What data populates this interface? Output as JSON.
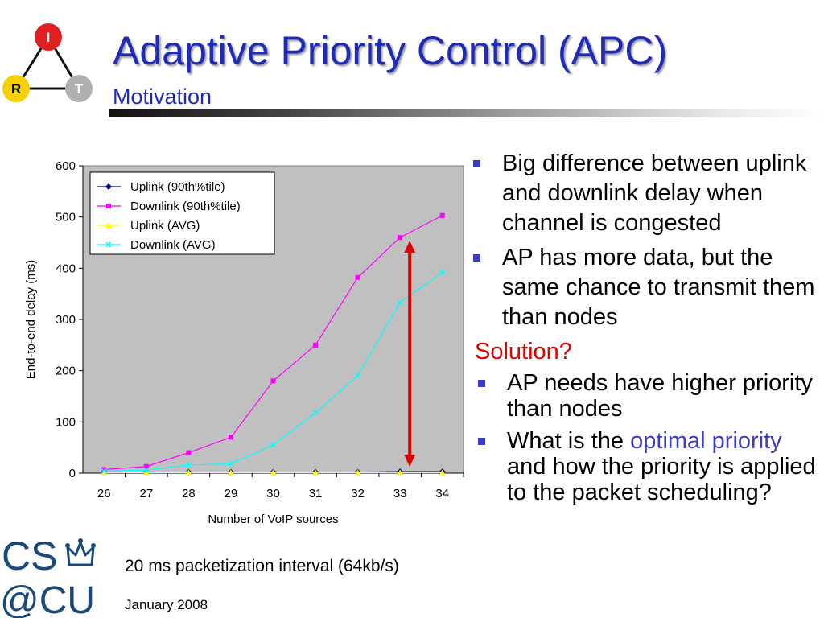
{
  "header": {
    "title": "Adaptive Priority Control (APC)",
    "subtitle": "Motivation",
    "logo": {
      "top": "I",
      "left": "R",
      "right": "T"
    }
  },
  "chart_data": {
    "type": "line",
    "xlabel": "Number of VoIP sources",
    "ylabel": "End-to-end delay (ms)",
    "categories": [
      "26",
      "27",
      "28",
      "29",
      "30",
      "31",
      "32",
      "33",
      "34"
    ],
    "ylim": [
      0,
      600
    ],
    "yticks": [
      "0",
      "100",
      "200",
      "300",
      "400",
      "500",
      "600"
    ],
    "grid": false,
    "legend_position": "top-left",
    "series": [
      {
        "name": "Uplink (90th%tile)",
        "color": "#000080",
        "marker": "diamond",
        "values": [
          2,
          2,
          2,
          2,
          2,
          2,
          2,
          3,
          3
        ]
      },
      {
        "name": "Downlink (90th%tile)",
        "color": "#ff00ff",
        "marker": "square",
        "values": [
          7,
          13,
          40,
          70,
          180,
          250,
          382,
          460,
          503
        ]
      },
      {
        "name": "Uplink (AVG)",
        "color": "#ffff00",
        "marker": "triangle",
        "values": [
          1,
          1,
          1,
          1,
          1,
          1,
          1,
          1,
          1
        ]
      },
      {
        "name": "Downlink (AVG)",
        "color": "#00ffff",
        "marker": "x",
        "values": [
          4,
          6,
          16,
          18,
          55,
          118,
          190,
          333,
          392
        ]
      }
    ],
    "annotations": [
      {
        "type": "double-arrow",
        "color": "#e00000",
        "x": "33",
        "y_from": 3,
        "y_to": 460
      }
    ]
  },
  "bullets": [
    {
      "text": "Big difference between uplink and downlink delay when channel is congested"
    },
    {
      "text": "AP has more data, but the same chance to transmit them than nodes"
    }
  ],
  "solution_label": "Solution?",
  "sub_bullets": {
    "item1": "AP needs have higher priority than nodes",
    "item2_before": "What is the ",
    "item2_highlight": "optimal priority",
    "item2_after": " and how the priority is applied to the packet scheduling?"
  },
  "footnote": "20 ms packetization interval (64kb/s)",
  "footer_date": "January 2008",
  "logo_text": {
    "line1": "CS",
    "line2": "@CU"
  },
  "colors": {
    "title": "#1f2bb5",
    "bullet": "#3b3bc4",
    "solution": "#e00000",
    "plot_bg": "#c0c0c0",
    "logo": "#1a4a7a"
  }
}
